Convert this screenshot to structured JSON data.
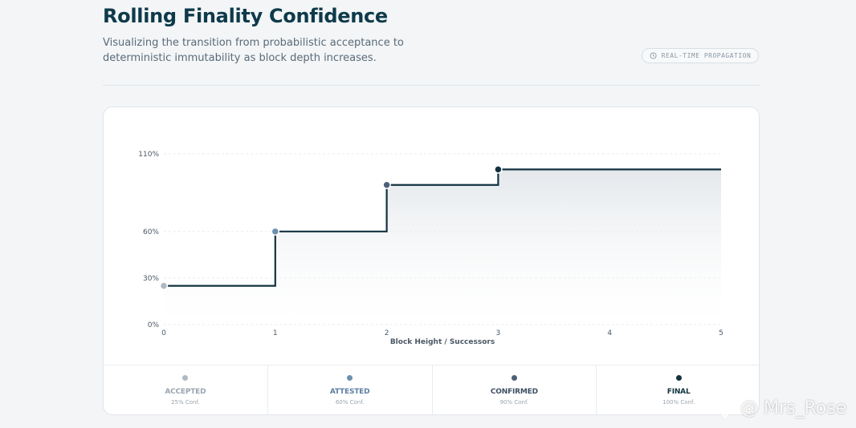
{
  "header": {
    "title": "Rolling Finality Confidence",
    "subtitle": "Visualizing the transition from probabilistic acceptance to deterministic immutability as block depth increases.",
    "badge_label": "REAL-TIME PROPAGATION",
    "badge_icon": "clock-icon"
  },
  "chart_data": {
    "type": "line",
    "step": true,
    "x": [
      0,
      1,
      2,
      3,
      4,
      5
    ],
    "y": [
      25,
      60,
      90,
      100,
      100,
      100
    ],
    "markers_at": [
      0,
      1,
      2,
      3
    ],
    "marker_colors": [
      "#b0b8c2",
      "#6f8fb0",
      "#4d6078",
      "#12323f"
    ],
    "xlabel": "Block Height / Successors",
    "ylabel": "",
    "xlim": [
      0,
      5
    ],
    "ylim": [
      0,
      110
    ],
    "x_ticks": [
      "0",
      "1",
      "2",
      "3",
      "4",
      "5"
    ],
    "y_ticks": [
      {
        "value": 0,
        "label": "0%"
      },
      {
        "value": 30,
        "label": "30%"
      },
      {
        "value": 60,
        "label": "60%"
      },
      {
        "value": 110,
        "label": "110%"
      }
    ],
    "grid": true,
    "line_color": "#12323f",
    "fill": "area"
  },
  "legend": [
    {
      "name": "ACCEPTED",
      "conf": "25% Conf.",
      "color": "#b0b8c2",
      "text_color": "#9aa5b0"
    },
    {
      "name": "ATTESTED",
      "conf": "60% Conf.",
      "color": "#6f8fb0",
      "text_color": "#5f7fa3"
    },
    {
      "name": "CONFIRMED",
      "conf": "90% Conf.",
      "color": "#4d6078",
      "text_color": "#3e4f63"
    },
    {
      "name": "FINAL",
      "conf": "100% Conf.",
      "color": "#12323f",
      "text_color": "#12323f"
    }
  ],
  "watermark": {
    "text": "@ Mrs_Rose"
  }
}
